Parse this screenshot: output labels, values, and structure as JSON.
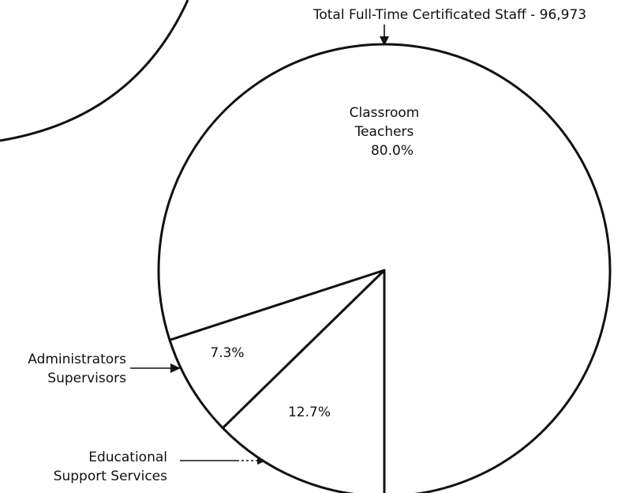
{
  "chart_data": {
    "type": "pie",
    "title": "Total Full-Time Certificated Staff - 96,973",
    "categories": [
      "Educational\nSupport Services",
      "Administrators\nSupervisors",
      "Classroom\nTeachers"
    ],
    "values": [
      12.7,
      7.3,
      80
    ],
    "value_labels": [
      "12.7%",
      "7.3%",
      "80.0%"
    ],
    "colors": [
      "#ffffff",
      "#ffffff",
      "#ffffff"
    ]
  }
}
